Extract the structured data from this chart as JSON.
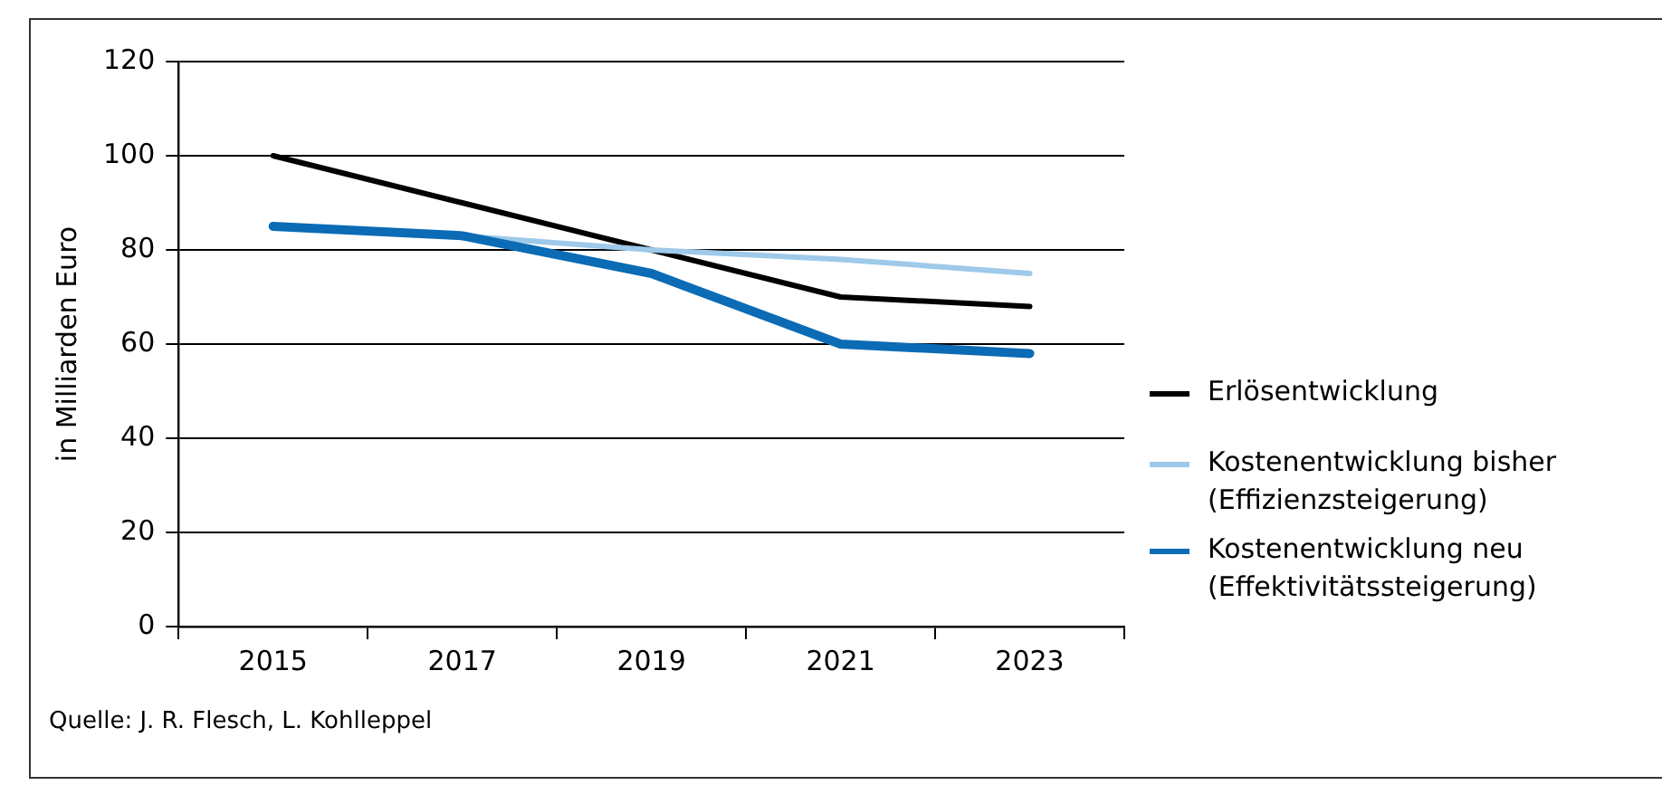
{
  "chart_data": {
    "type": "line",
    "ylabel": "in Milliarden Euro",
    "categories": [
      "2015",
      "2017",
      "2019",
      "2021",
      "2023"
    ],
    "series": [
      {
        "name": "Erlösentwicklung",
        "color": "#000000",
        "values": [
          100,
          90,
          80,
          70,
          68
        ]
      },
      {
        "name": "Kostenentwicklung bisher (Effizienzsteigerung)",
        "color": "#9ec9e9",
        "values": [
          null,
          83,
          80,
          78,
          75
        ]
      },
      {
        "name": "Kostenentwicklung neu (Effektivitätssteigerung)",
        "color": "#0b6bb5",
        "values": [
          85,
          83,
          75,
          60,
          58
        ]
      }
    ],
    "ylim": [
      0,
      120
    ],
    "yticks": [
      0,
      20,
      40,
      60,
      80,
      100,
      120
    ],
    "grid": "y",
    "legend": "right",
    "marker": "none",
    "line_style": "solid",
    "annotations": [
      "Quelle: J. R. Flesch, L. Kohlleppel"
    ]
  }
}
